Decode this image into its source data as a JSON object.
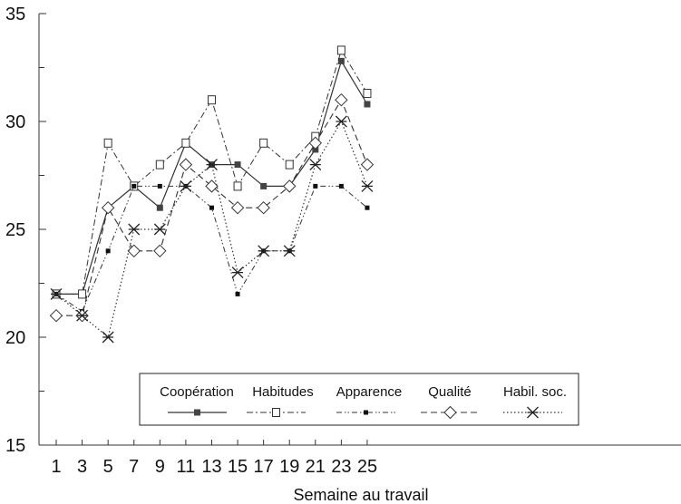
{
  "chart_data": {
    "type": "line",
    "title": "",
    "xlabel": "Semaine au travail",
    "ylabel": "",
    "x": [
      1,
      3,
      5,
      7,
      9,
      11,
      13,
      15,
      17,
      19,
      21,
      23,
      25
    ],
    "x_ticks": [
      "1",
      "3",
      "5",
      "7",
      "9",
      "11",
      "13",
      "15",
      "17",
      "19",
      "21",
      "23",
      "25"
    ],
    "y_ticks": [
      "15",
      "20",
      "25",
      "30",
      "35"
    ],
    "ylim": [
      15,
      35
    ],
    "grid": false,
    "legend_position": "bottom-center",
    "series": [
      {
        "name": "Coopération",
        "marker": "filled-square",
        "line": "solid",
        "values": [
          22,
          22,
          26,
          27,
          26,
          29,
          28,
          28,
          27,
          27,
          28.7,
          32.8,
          30.8
        ]
      },
      {
        "name": "Habitudes",
        "marker": "open-square",
        "line": "dash-dot",
        "values": [
          22,
          22,
          29,
          27,
          28,
          29,
          31,
          27,
          29,
          28,
          29.3,
          33.3,
          31.3
        ]
      },
      {
        "name": "Apparence",
        "marker": "small-filled-square",
        "line": "dash-dot-dot",
        "values": [
          22,
          21.2,
          24,
          27,
          27,
          27,
          26,
          22,
          24,
          24,
          27,
          27,
          26
        ]
      },
      {
        "name": "Qualité",
        "marker": "open-diamond",
        "line": "dashed",
        "values": [
          21,
          21,
          26,
          24,
          24,
          28,
          27,
          26,
          26,
          27,
          29,
          31,
          28
        ]
      },
      {
        "name": "Habil. soc.",
        "marker": "asterisk",
        "line": "dotted",
        "values": [
          22,
          21,
          20,
          25,
          25,
          27,
          28,
          23,
          24,
          24,
          28,
          30,
          27
        ]
      }
    ]
  }
}
